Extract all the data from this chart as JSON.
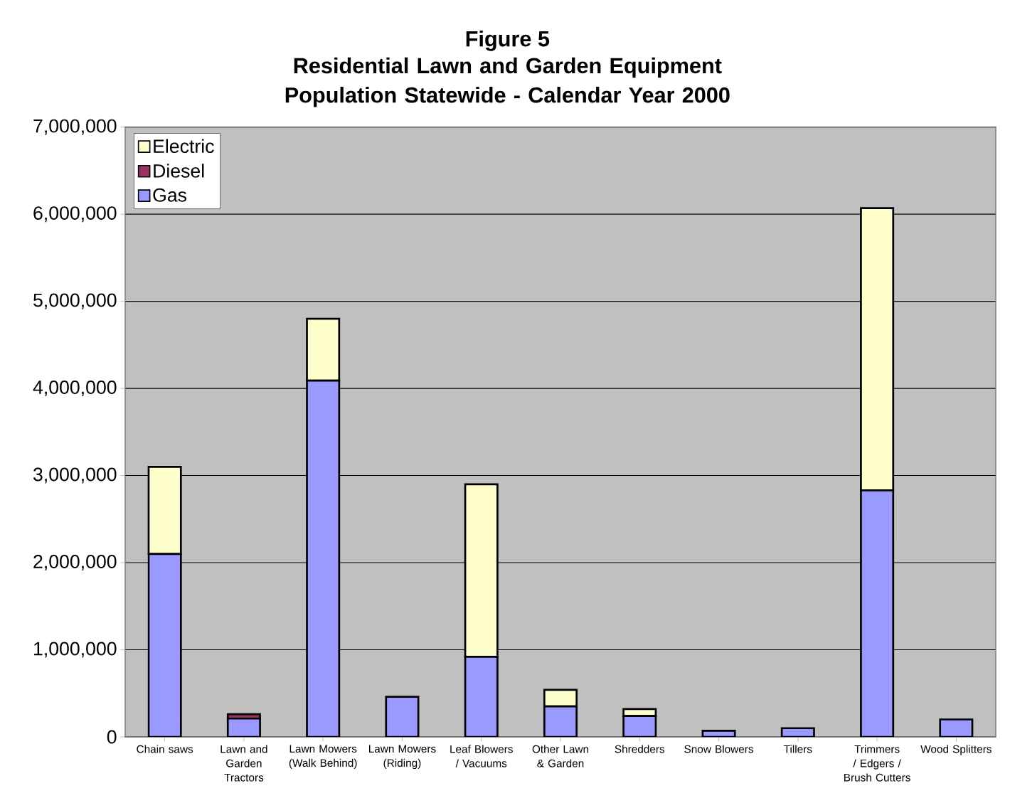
{
  "chart_data": {
    "type": "bar",
    "stacked": true,
    "title": "Figure 5",
    "subtitle": "Residential Lawn and Garden Equipment Population Statewide - Calendar Year 2000",
    "categories": [
      "Chain saws",
      "Lawn and Garden Tractors",
      "Lawn Mowers (Walk Behind)",
      "Lawn Mowers (Riding)",
      "Leaf Blowers / Vacuums",
      "Other Lawn & Garden",
      "Shredders",
      "Snow Blowers",
      "Tillers",
      "Trimmers / Edgers / Brush Cutters",
      "Wood Splitters"
    ],
    "series": [
      {
        "name": "Gas",
        "color": "#9999ff",
        "values": [
          2100000,
          210000,
          4090000,
          460000,
          920000,
          350000,
          240000,
          70000,
          100000,
          2830000,
          200000
        ]
      },
      {
        "name": "Diesel",
        "color": "#993366",
        "values": [
          null,
          50000,
          null,
          null,
          null,
          null,
          null,
          null,
          null,
          null,
          null
        ]
      },
      {
        "name": "Electric",
        "color": "#ffffcc",
        "values": [
          1000000,
          null,
          710000,
          null,
          1980000,
          190000,
          80000,
          null,
          null,
          3240000,
          null
        ]
      }
    ],
    "ylim": [
      0,
      7000000
    ],
    "yticks": [
      {
        "value": 0,
        "label": "0"
      },
      {
        "value": 1000000,
        "label": "1,000,000"
      },
      {
        "value": 2000000,
        "label": "2,000,000"
      },
      {
        "value": 3000000,
        "label": "3,000,000"
      },
      {
        "value": 4000000,
        "label": "4,000,000"
      },
      {
        "value": 5000000,
        "label": "5,000,000"
      },
      {
        "value": 6000000,
        "label": "6,000,000"
      },
      {
        "value": 7000000,
        "label": "7,000,000"
      }
    ],
    "grid": "y",
    "legend": "top left"
  }
}
